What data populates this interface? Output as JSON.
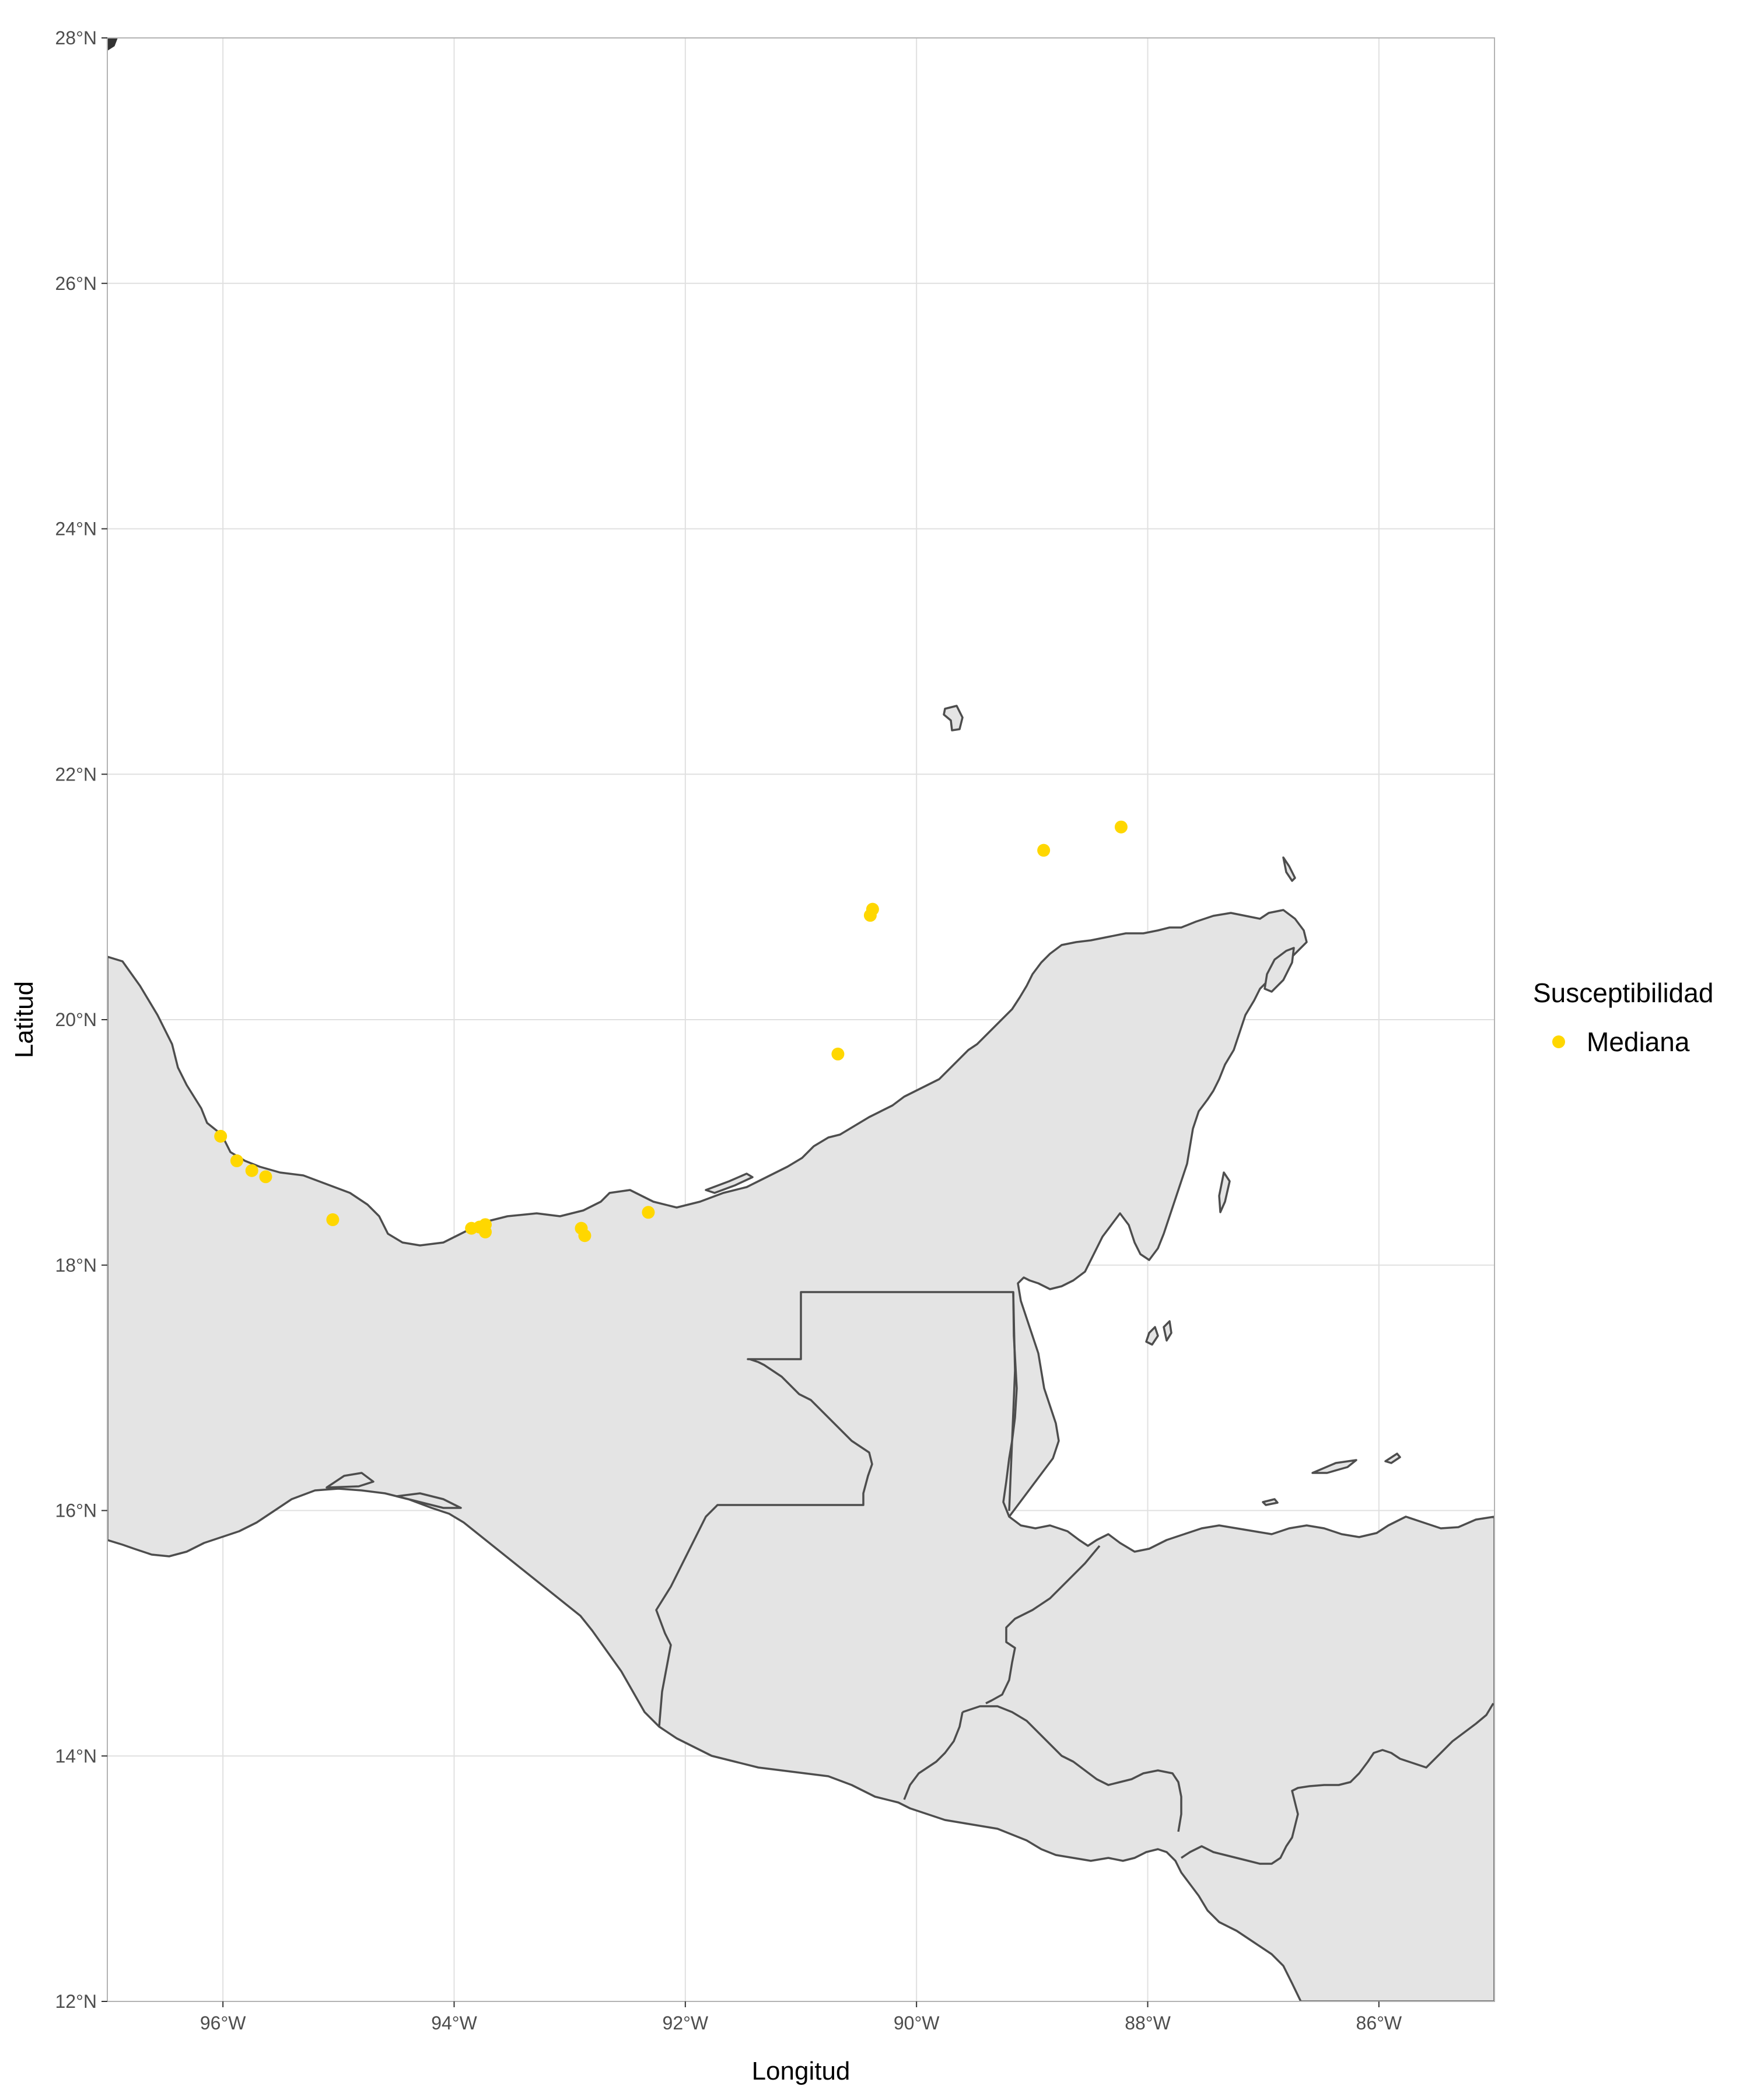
{
  "map": {
    "x_label": "Longitud",
    "y_label": "Latitud",
    "lon_range": [
      -97.0,
      -85.0
    ],
    "lat_range": [
      12.0,
      28.0
    ],
    "x_ticks": [
      {
        "value": -96,
        "label": "96°W"
      },
      {
        "value": -94,
        "label": "94°W"
      },
      {
        "value": -92,
        "label": "92°W"
      },
      {
        "value": -90,
        "label": "90°W"
      },
      {
        "value": -88,
        "label": "88°W"
      },
      {
        "value": -86,
        "label": "86°W"
      }
    ],
    "y_ticks": [
      {
        "value": 12,
        "label": "12°N"
      },
      {
        "value": 14,
        "label": "14°N"
      },
      {
        "value": 16,
        "label": "16°N"
      },
      {
        "value": 18,
        "label": "18°N"
      },
      {
        "value": 20,
        "label": "20°N"
      },
      {
        "value": 22,
        "label": "22°N"
      },
      {
        "value": 24,
        "label": "24°N"
      },
      {
        "value": 26,
        "label": "26°N"
      },
      {
        "value": 28,
        "label": "28°N"
      }
    ],
    "colors": {
      "land_fill": "#e4e4e4",
      "coast_line": "#4d4d4d",
      "grid": "#e0e0e0",
      "point": "#FFD700"
    }
  },
  "legend": {
    "title": "Susceptibilidad",
    "items": [
      {
        "label": "Mediana",
        "color": "#FFD700"
      }
    ]
  },
  "points": [
    {
      "lon": -96.02,
      "lat": 19.05
    },
    {
      "lon": -95.88,
      "lat": 18.85
    },
    {
      "lon": -95.75,
      "lat": 18.77
    },
    {
      "lon": -95.63,
      "lat": 18.72
    },
    {
      "lon": -95.05,
      "lat": 18.37
    },
    {
      "lon": -93.85,
      "lat": 18.3
    },
    {
      "lon": -93.78,
      "lat": 18.31
    },
    {
      "lon": -93.73,
      "lat": 18.33
    },
    {
      "lon": -93.73,
      "lat": 18.27
    },
    {
      "lon": -92.9,
      "lat": 18.3
    },
    {
      "lon": -92.87,
      "lat": 18.24
    },
    {
      "lon": -92.32,
      "lat": 18.43
    },
    {
      "lon": -90.68,
      "lat": 19.72
    },
    {
      "lon": -90.4,
      "lat": 20.85
    },
    {
      "lon": -90.38,
      "lat": 20.9
    },
    {
      "lon": -88.9,
      "lat": 21.38
    },
    {
      "lon": -88.23,
      "lat": 21.57
    }
  ]
}
